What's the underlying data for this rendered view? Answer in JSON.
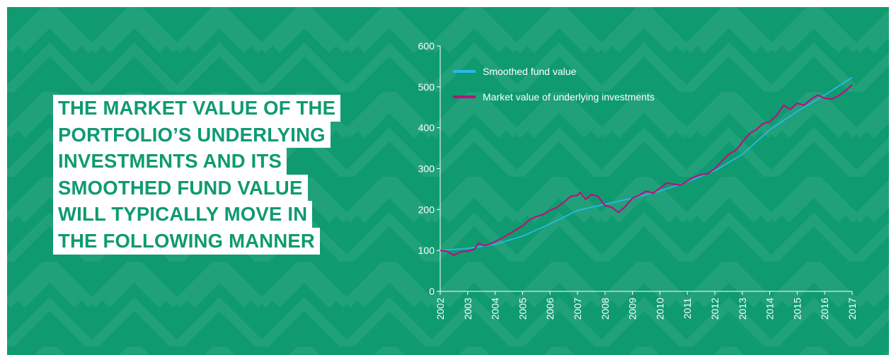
{
  "headline": {
    "lines": [
      "THE MARKET VALUE OF THE",
      "PORTFOLIO’S UNDERLYING",
      "INVESTMENTS AND ITS",
      "SMOOTHED FUND VALUE",
      "WILL TYPICALLY MOVE IN",
      "THE FOLLOWING MANNER"
    ]
  },
  "chart_data": {
    "type": "line",
    "xlim": [
      2002,
      2017
    ],
    "xticks": [
      2002,
      2003,
      2004,
      2005,
      2006,
      2007,
      2008,
      2009,
      2010,
      2011,
      2012,
      2013,
      2014,
      2015,
      2016,
      2017
    ],
    "ylim": [
      0,
      600
    ],
    "yticks": [
      0,
      100,
      200,
      300,
      400,
      500,
      600
    ],
    "legend": "upper left",
    "series": [
      {
        "name": "Smoothed fund value",
        "color": "#2bb8e6",
        "x": [
          2002,
          2003,
          2004,
          2005,
          2006,
          2007,
          2008,
          2009,
          2010,
          2011,
          2012,
          2013,
          2014,
          2015,
          2016,
          2017
        ],
        "values": [
          100,
          105,
          115,
          135,
          165,
          198,
          213,
          228,
          245,
          268,
          295,
          335,
          395,
          440,
          480,
          523
        ]
      },
      {
        "name": "Market value of underlying investments",
        "color": "#b8127a",
        "x": [
          2002,
          2002.25,
          2002.5,
          2002.75,
          2003,
          2003.25,
          2003.4,
          2003.6,
          2003.8,
          2004,
          2004.25,
          2004.5,
          2004.75,
          2005,
          2005.25,
          2005.5,
          2005.75,
          2006,
          2006.25,
          2006.5,
          2006.75,
          2007,
          2007.1,
          2007.3,
          2007.5,
          2007.75,
          2008,
          2008.25,
          2008.5,
          2008.75,
          2009,
          2009.25,
          2009.5,
          2009.75,
          2010,
          2010.25,
          2010.5,
          2010.75,
          2011,
          2011.25,
          2011.5,
          2011.75,
          2012,
          2012.25,
          2012.5,
          2012.75,
          2012.9,
          2013,
          2013.25,
          2013.5,
          2013.75,
          2014,
          2014.25,
          2014.5,
          2014.75,
          2015,
          2015.25,
          2015.5,
          2015.75,
          2016,
          2016.25,
          2016.5,
          2016.75,
          2017
        ],
        "values": [
          100,
          98,
          88,
          97,
          98,
          103,
          118,
          112,
          115,
          122,
          130,
          140,
          150,
          160,
          175,
          183,
          188,
          198,
          205,
          218,
          232,
          235,
          242,
          225,
          237,
          232,
          210,
          205,
          193,
          208,
          228,
          235,
          245,
          240,
          252,
          265,
          262,
          260,
          270,
          280,
          285,
          288,
          300,
          318,
          335,
          345,
          355,
          365,
          385,
          395,
          410,
          415,
          430,
          455,
          445,
          460,
          455,
          470,
          480,
          472,
          470,
          478,
          490,
          505
        ]
      }
    ]
  }
}
